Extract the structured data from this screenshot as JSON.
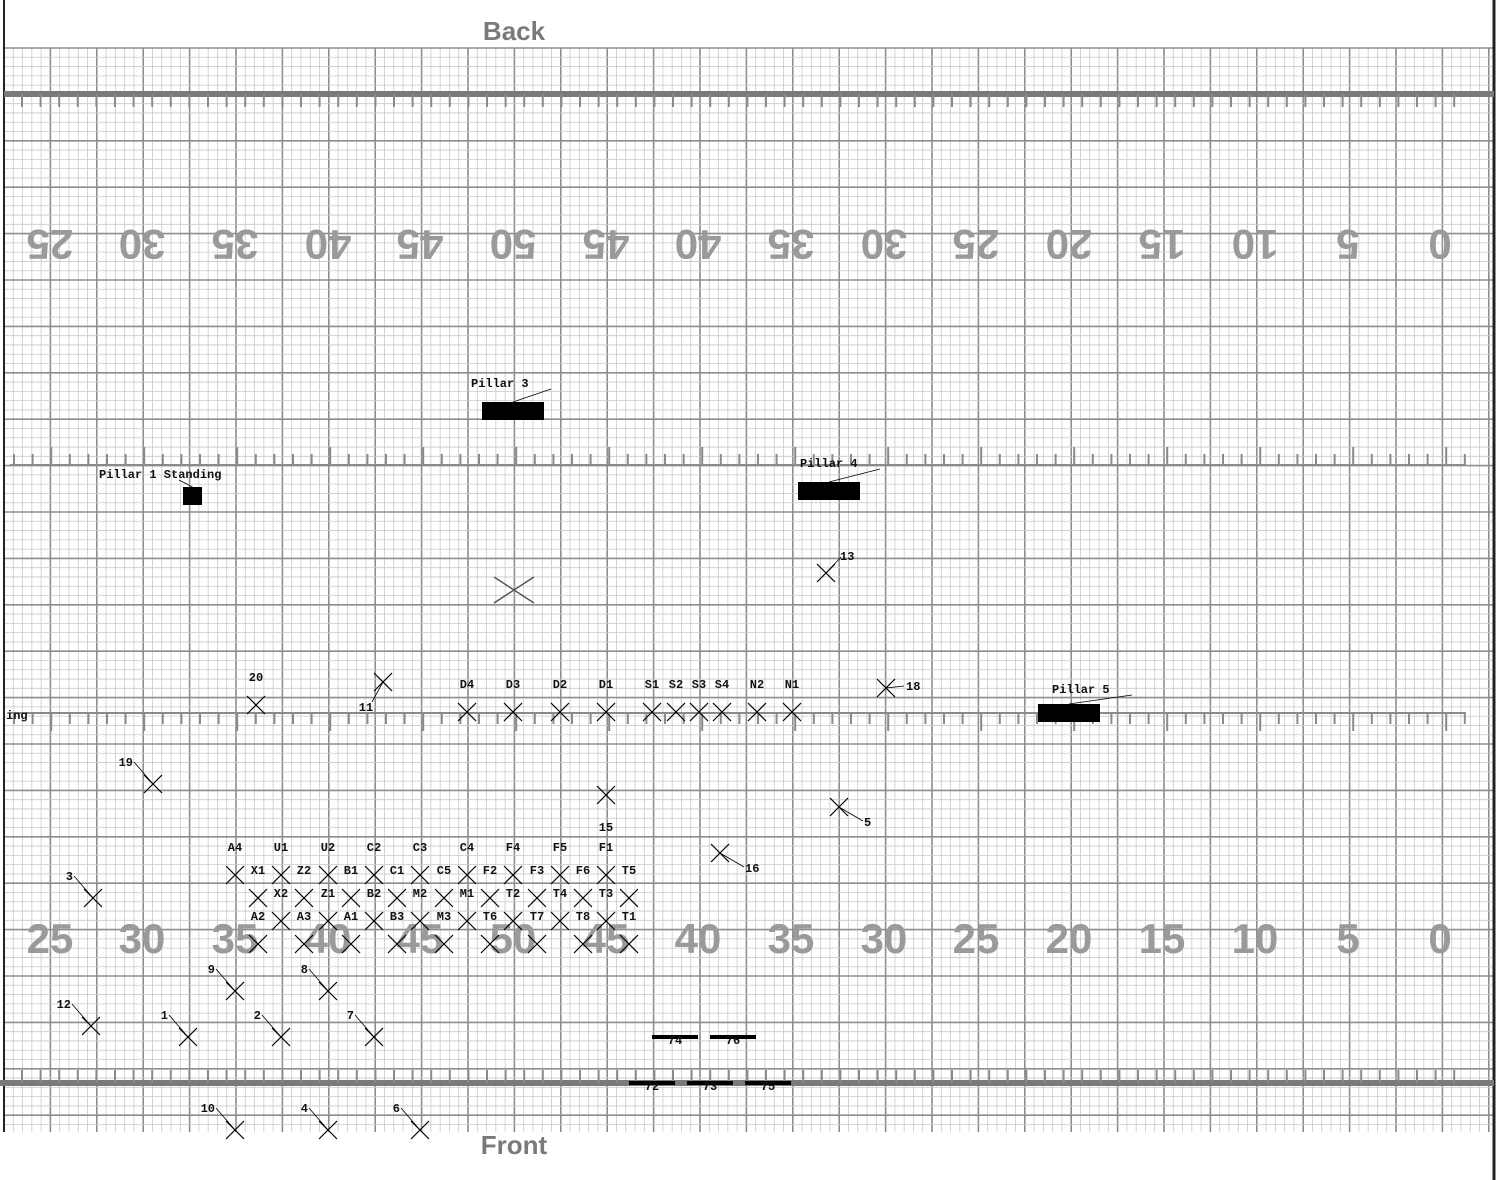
{
  "labels": {
    "back": "Back",
    "front": "Front",
    "left_edge": "ing"
  },
  "yard_numbers": {
    "top": [
      "25",
      "30",
      "35",
      "40",
      "45",
      "50",
      "45",
      "40",
      "35",
      "30",
      "25",
      "20",
      "15",
      "10",
      "5",
      "0"
    ],
    "bottom": [
      "25",
      "30",
      "35",
      "40",
      "45",
      "50",
      "45",
      "40",
      "35",
      "30",
      "25",
      "20",
      "15",
      "10",
      "5",
      "0"
    ]
  },
  "pillars": [
    {
      "id": "pillar-1",
      "label": "Pillar 1 Standing"
    },
    {
      "id": "pillar-3",
      "label": "Pillar 3"
    },
    {
      "id": "pillar-4",
      "label": "Pillar 4"
    },
    {
      "id": "pillar-5",
      "label": "Pillar 5"
    }
  ],
  "performers": [
    {
      "label": "D4"
    },
    {
      "label": "D3"
    },
    {
      "label": "D2"
    },
    {
      "label": "D1"
    },
    {
      "label": "S1"
    },
    {
      "label": "S2"
    },
    {
      "label": "S3"
    },
    {
      "label": "S4"
    },
    {
      "label": "N2"
    },
    {
      "label": "N1"
    },
    {
      "label": "A4"
    },
    {
      "label": "U1"
    },
    {
      "label": "U2"
    },
    {
      "label": "C2"
    },
    {
      "label": "C3"
    },
    {
      "label": "C4"
    },
    {
      "label": "F4"
    },
    {
      "label": "F5"
    },
    {
      "label": "F1"
    },
    {
      "label": "X1"
    },
    {
      "label": "Z2"
    },
    {
      "label": "B1"
    },
    {
      "label": "C1"
    },
    {
      "label": "C5"
    },
    {
      "label": "F2"
    },
    {
      "label": "F3"
    },
    {
      "label": "F6"
    },
    {
      "label": "T5"
    },
    {
      "label": "X2"
    },
    {
      "label": "Z1"
    },
    {
      "label": "B2"
    },
    {
      "label": "M2"
    },
    {
      "label": "M1"
    },
    {
      "label": "T2"
    },
    {
      "label": "T4"
    },
    {
      "label": "T3"
    },
    {
      "label": "A2"
    },
    {
      "label": "A3"
    },
    {
      "label": "A1"
    },
    {
      "label": "B3"
    },
    {
      "label": "M3"
    },
    {
      "label": "T6"
    },
    {
      "label": "T7"
    },
    {
      "label": "T8"
    },
    {
      "label": "T1"
    },
    {
      "label": "1"
    },
    {
      "label": "2"
    },
    {
      "label": "3"
    },
    {
      "label": "4"
    },
    {
      "label": "5"
    },
    {
      "label": "6"
    },
    {
      "label": "7"
    },
    {
      "label": "8"
    },
    {
      "label": "9"
    },
    {
      "label": "10"
    },
    {
      "label": "11"
    },
    {
      "label": "12"
    },
    {
      "label": "13"
    },
    {
      "label": "15"
    },
    {
      "label": "16"
    },
    {
      "label": "18"
    },
    {
      "label": "19"
    },
    {
      "label": "20"
    }
  ],
  "props": [
    {
      "label": "74"
    },
    {
      "label": "76"
    },
    {
      "label": "72"
    },
    {
      "label": "73"
    },
    {
      "label": "75"
    }
  ]
}
